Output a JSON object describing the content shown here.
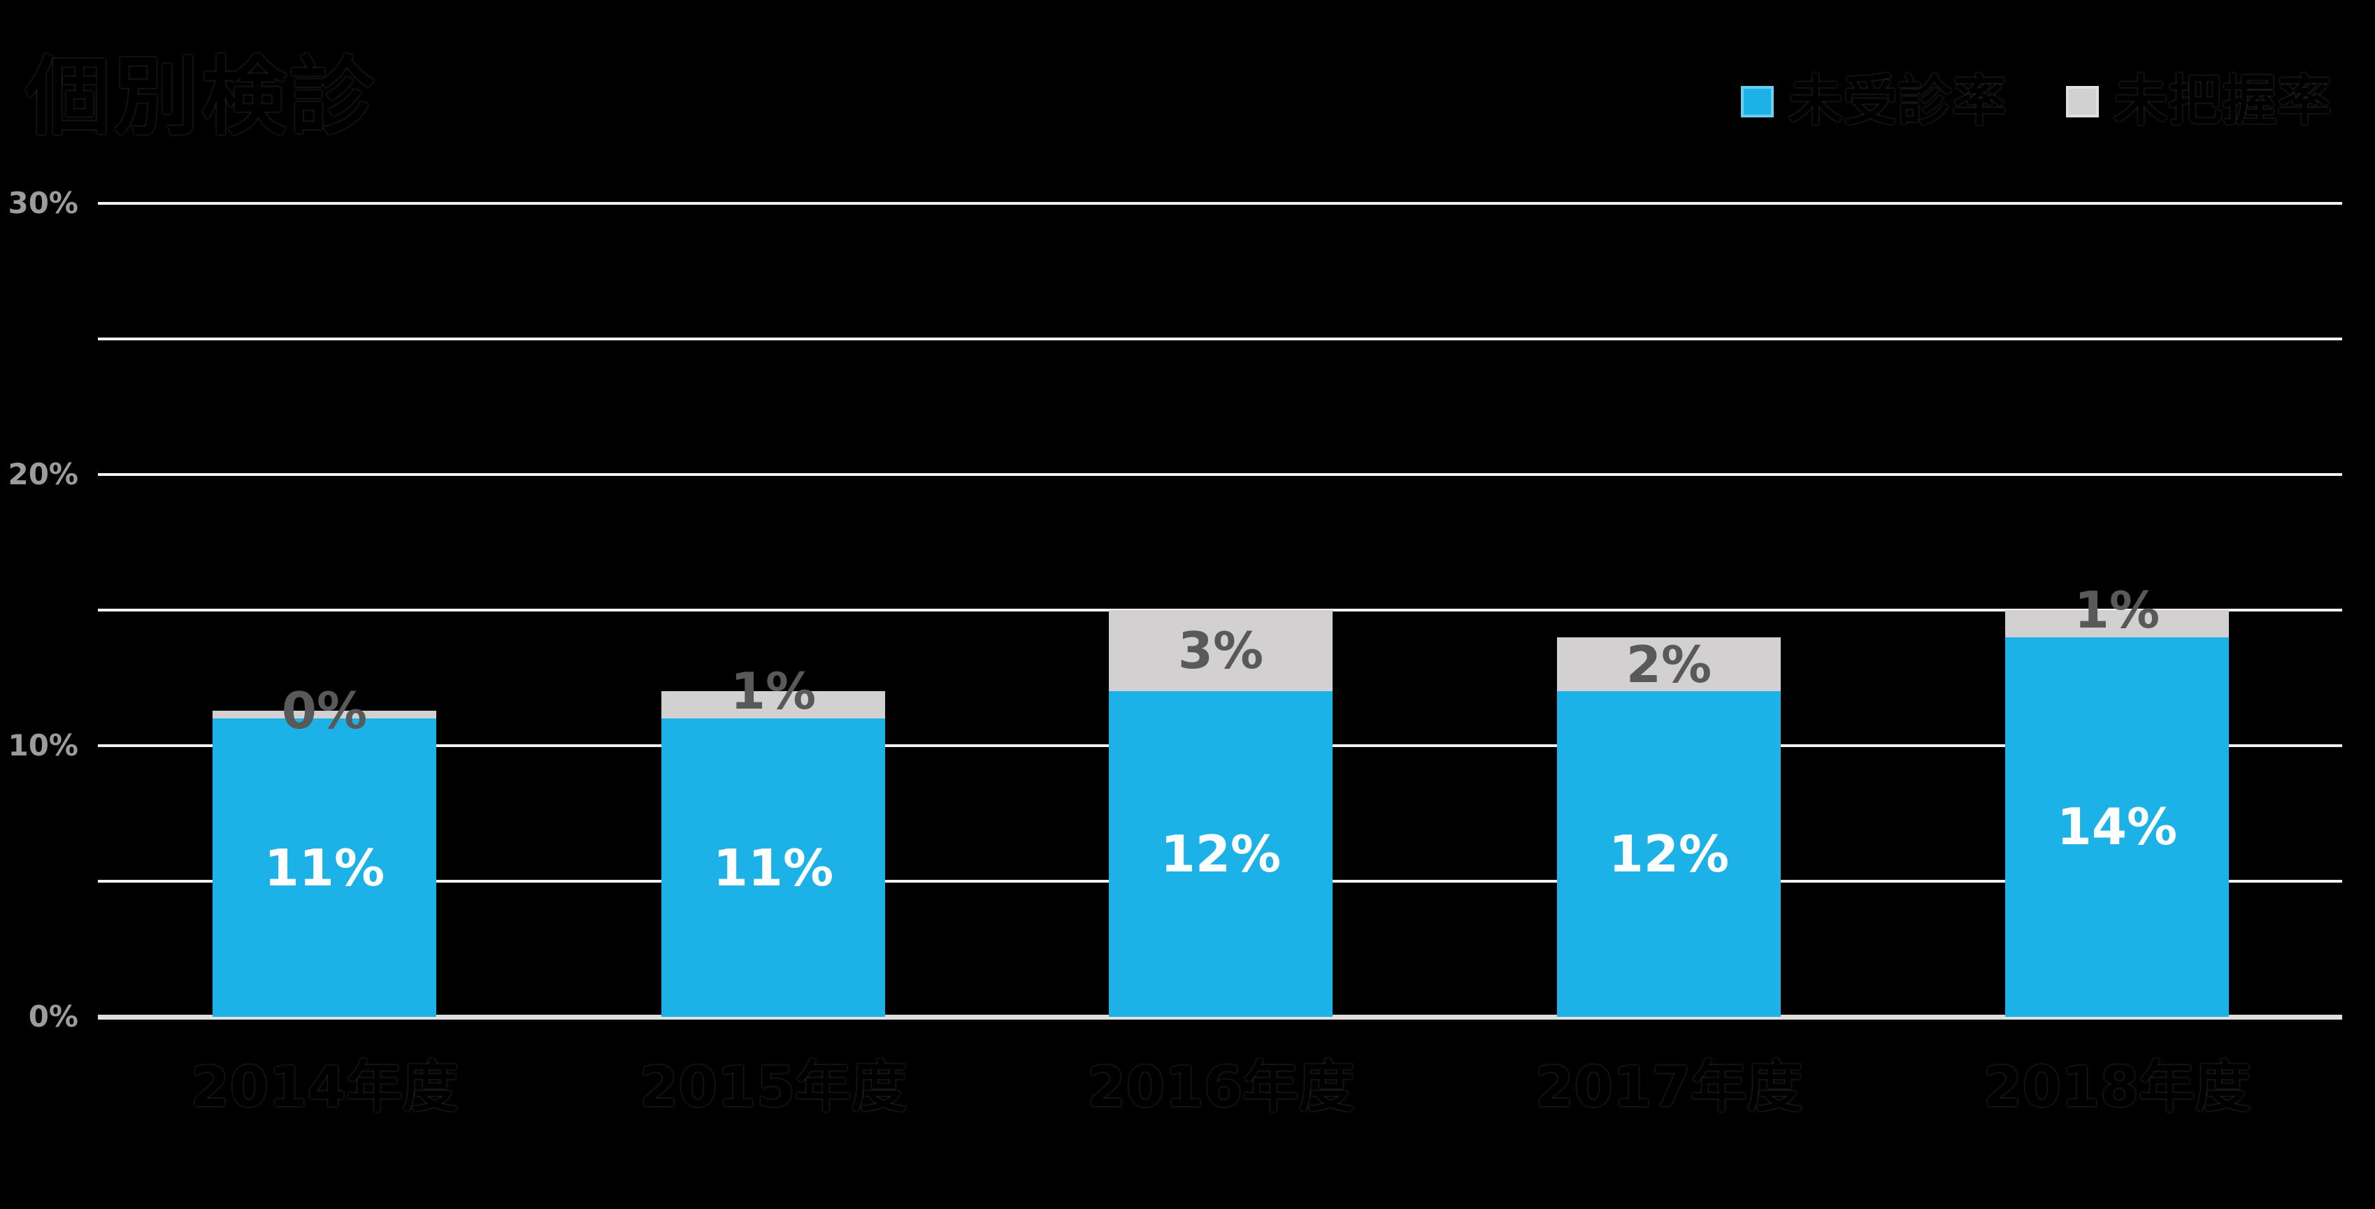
{
  "chart_data": {
    "type": "bar",
    "stacked": true,
    "title": "個別検診",
    "categories": [
      "2014年度",
      "2015年度",
      "2016年度",
      "2017年度",
      "2018年度"
    ],
    "series": [
      {
        "name": "未受診率",
        "color": "#1CB2E8",
        "values": [
          11,
          11,
          12,
          12,
          14
        ],
        "data_labels": [
          "11%",
          "11%",
          "12%",
          "12%",
          "14%"
        ],
        "data_label_color": "#FFFFFF"
      },
      {
        "name": "未把握率",
        "color": "#D2D0D0",
        "values": [
          0,
          1,
          3,
          2,
          1
        ],
        "data_labels": [
          "0%",
          "1%",
          "3%",
          "2%",
          "1%"
        ],
        "data_label_color": "#595959"
      }
    ],
    "y_axis": {
      "min": 0,
      "max": 30,
      "gridline_step": 5,
      "ticks": [
        {
          "value": 0,
          "label": "0%"
        },
        {
          "value": 10,
          "label": "10%"
        },
        {
          "value": 20,
          "label": "20%"
        },
        {
          "value": 30,
          "label": "30%"
        }
      ],
      "tick_color": "#9C9C9C",
      "gridline_color": "#F2F2F2"
    },
    "legend_position": "top-right",
    "grid": true,
    "background": "#000000",
    "title_color": "#000000",
    "category_label_color": "#000000"
  }
}
